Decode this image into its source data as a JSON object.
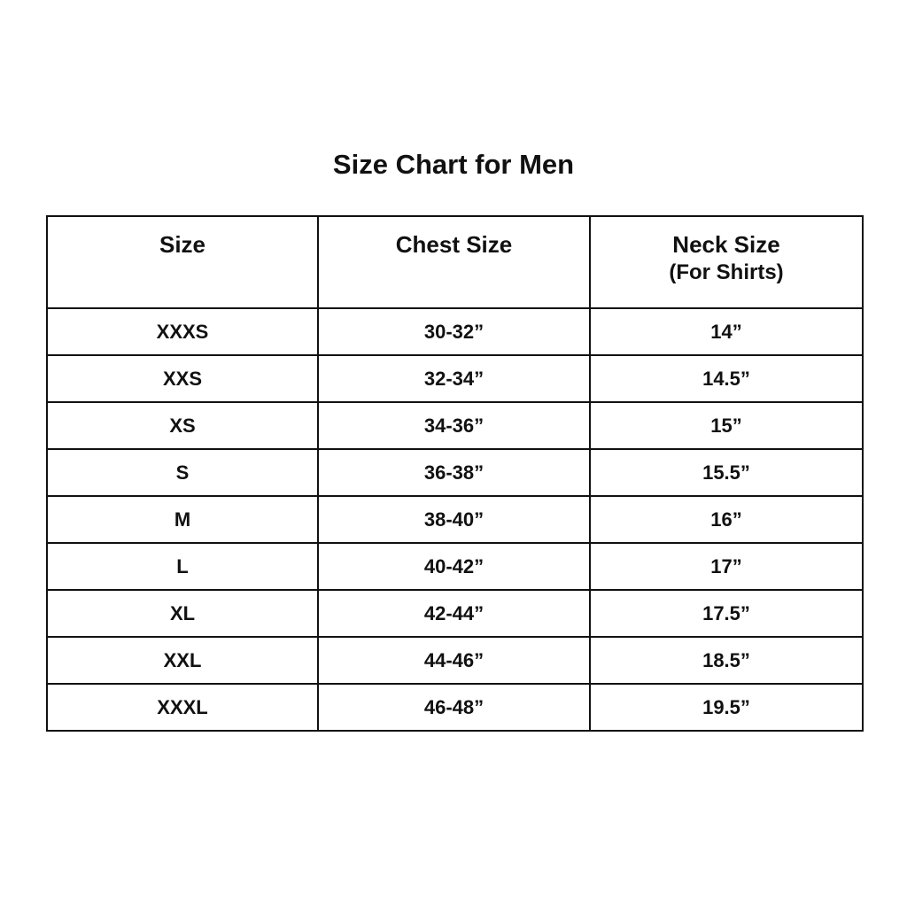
{
  "title": "Size Chart for Men",
  "columns": [
    {
      "label": "Size",
      "sub": ""
    },
    {
      "label": "Chest Size",
      "sub": ""
    },
    {
      "label": "Neck Size",
      "sub": "(For Shirts)"
    }
  ],
  "rows": [
    [
      "XXXS",
      "30-32”",
      "14”"
    ],
    [
      "XXS",
      "32-34”",
      "14.5”"
    ],
    [
      "XS",
      "34-36”",
      "15”"
    ],
    [
      "S",
      "36-38”",
      "15.5”"
    ],
    [
      "M",
      "38-40”",
      "16”"
    ],
    [
      "L",
      "40-42”",
      "17”"
    ],
    [
      "XL",
      "42-44”",
      "17.5”"
    ],
    [
      "XXL",
      "44-46”",
      "18.5”"
    ],
    [
      "XXXL",
      "46-48”",
      "19.5”"
    ]
  ]
}
